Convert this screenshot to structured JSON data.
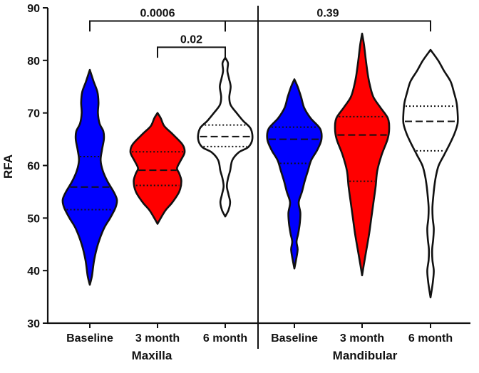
{
  "chart_data": {
    "type": "violin",
    "ylabel": "RFA",
    "ylim": [
      30,
      90
    ],
    "yticks": [
      30,
      40,
      50,
      60,
      70,
      80,
      90
    ],
    "grid": false,
    "groups": [
      {
        "name": "Maxilla",
        "categories": [
          "Baseline",
          "3 month",
          "6 month"
        ]
      },
      {
        "name": "Mandibular",
        "categories": [
          "Baseline",
          "3 month",
          "6 month"
        ]
      }
    ],
    "violins": [
      {
        "group": "Maxilla",
        "label": "Baseline",
        "color": "#0000ff",
        "min": 37.3,
        "max": 78.2,
        "q1": 51.6,
        "median": 55.9,
        "q3": 61.7,
        "profile": [
          [
            37.3,
            0
          ],
          [
            39,
            0.08
          ],
          [
            42,
            0.16
          ],
          [
            45,
            0.3
          ],
          [
            48,
            0.52
          ],
          [
            50,
            0.75
          ],
          [
            52,
            0.95
          ],
          [
            53.5,
            1.0
          ],
          [
            55,
            0.88
          ],
          [
            57,
            0.65
          ],
          [
            59,
            0.48
          ],
          [
            61,
            0.4
          ],
          [
            63,
            0.45
          ],
          [
            65,
            0.52
          ],
          [
            66.5,
            0.5
          ],
          [
            68,
            0.36
          ],
          [
            70,
            0.3
          ],
          [
            72,
            0.32
          ],
          [
            74,
            0.28
          ],
          [
            76,
            0.14
          ],
          [
            78.2,
            0
          ]
        ]
      },
      {
        "group": "Maxilla",
        "label": "3 month",
        "color": "#ff0000",
        "min": 48.9,
        "max": 70.0,
        "q1": 56.2,
        "median": 59.1,
        "q3": 62.6,
        "profile": [
          [
            48.9,
            0
          ],
          [
            50,
            0.12
          ],
          [
            51.5,
            0.3
          ],
          [
            53,
            0.55
          ],
          [
            55,
            0.8
          ],
          [
            57,
            0.88
          ],
          [
            58.5,
            0.8
          ],
          [
            59.5,
            0.72
          ],
          [
            61,
            0.86
          ],
          [
            62.5,
            1.0
          ],
          [
            64,
            0.92
          ],
          [
            66,
            0.55
          ],
          [
            67.5,
            0.25
          ],
          [
            69,
            0.12
          ],
          [
            70,
            0
          ]
        ]
      },
      {
        "group": "Maxilla",
        "label": "6 month",
        "color": "#ffffff",
        "min": 50.3,
        "max": 80.5,
        "q1": 63.6,
        "median": 65.5,
        "q3": 67.7,
        "profile": [
          [
            50.3,
            0
          ],
          [
            51.5,
            0.12
          ],
          [
            53,
            0.18
          ],
          [
            54.5,
            0.12
          ],
          [
            56,
            0.06
          ],
          [
            57.5,
            0.1
          ],
          [
            59,
            0.18
          ],
          [
            61,
            0.26
          ],
          [
            62.5,
            0.5
          ],
          [
            63.5,
            0.85
          ],
          [
            65,
            1.0
          ],
          [
            67,
            0.94
          ],
          [
            68.5,
            0.66
          ],
          [
            70,
            0.42
          ],
          [
            71.5,
            0.2
          ],
          [
            73,
            0.15
          ],
          [
            75,
            0.2
          ],
          [
            76.5,
            0.14
          ],
          [
            78,
            0.08
          ],
          [
            79.5,
            0.1
          ],
          [
            80.5,
            0
          ]
        ]
      },
      {
        "group": "Mandibular",
        "label": "Baseline",
        "color": "#0000ff",
        "min": 40.4,
        "max": 76.4,
        "q1": 60.4,
        "median": 65.0,
        "q3": 67.3,
        "profile": [
          [
            40.4,
            0
          ],
          [
            42,
            0.06
          ],
          [
            44,
            0.12
          ],
          [
            45.5,
            0.08
          ],
          [
            47,
            0.14
          ],
          [
            49,
            0.2
          ],
          [
            51,
            0.22
          ],
          [
            53,
            0.16
          ],
          [
            55,
            0.28
          ],
          [
            57,
            0.38
          ],
          [
            59,
            0.5
          ],
          [
            61,
            0.62
          ],
          [
            63,
            0.85
          ],
          [
            65,
            1.0
          ],
          [
            67,
            0.95
          ],
          [
            69,
            0.6
          ],
          [
            71,
            0.36
          ],
          [
            73,
            0.25
          ],
          [
            75,
            0.12
          ],
          [
            76.4,
            0
          ]
        ]
      },
      {
        "group": "Mandibular",
        "label": "3 month",
        "color": "#ff0000",
        "min": 39.1,
        "max": 85.1,
        "q1": 57.0,
        "median": 65.8,
        "q3": 69.3,
        "profile": [
          [
            39.1,
            0
          ],
          [
            41,
            0.06
          ],
          [
            44,
            0.16
          ],
          [
            47,
            0.26
          ],
          [
            50,
            0.34
          ],
          [
            53,
            0.42
          ],
          [
            56,
            0.5
          ],
          [
            59,
            0.56
          ],
          [
            62,
            0.72
          ],
          [
            65,
            0.94
          ],
          [
            67,
            1.0
          ],
          [
            69,
            0.95
          ],
          [
            71,
            0.68
          ],
          [
            73,
            0.42
          ],
          [
            75,
            0.3
          ],
          [
            77,
            0.22
          ],
          [
            80,
            0.14
          ],
          [
            83,
            0.07
          ],
          [
            85.1,
            0
          ]
        ]
      },
      {
        "group": "Mandibular",
        "label": "6 month",
        "color": "#ffffff",
        "min": 34.9,
        "max": 82.0,
        "q1": 62.8,
        "median": 68.4,
        "q3": 71.3,
        "profile": [
          [
            34.9,
            0
          ],
          [
            36.5,
            0.05
          ],
          [
            38,
            0.09
          ],
          [
            40,
            0.12
          ],
          [
            42,
            0.07
          ],
          [
            44,
            0.06
          ],
          [
            46,
            0.1
          ],
          [
            48,
            0.12
          ],
          [
            50,
            0.08
          ],
          [
            52,
            0.07
          ],
          [
            54,
            0.1
          ],
          [
            56,
            0.14
          ],
          [
            58,
            0.2
          ],
          [
            60,
            0.3
          ],
          [
            62,
            0.5
          ],
          [
            64,
            0.7
          ],
          [
            66,
            0.88
          ],
          [
            68,
            1.0
          ],
          [
            70,
            1.0
          ],
          [
            72,
            0.96
          ],
          [
            74,
            0.86
          ],
          [
            76,
            0.74
          ],
          [
            78,
            0.5
          ],
          [
            80,
            0.28
          ],
          [
            82,
            0
          ]
        ]
      }
    ],
    "comparisons": [
      {
        "label": "0.0006",
        "from": 0,
        "to": 2,
        "y": 87.5,
        "drop_left": 85.5,
        "drop_right": 85.5
      },
      {
        "label": "0.02",
        "from": 1,
        "to": 2,
        "y": 82.5,
        "drop_left": 80.5,
        "drop_right": 80.5
      },
      {
        "label": "0.39",
        "from": 2,
        "to": 5,
        "y": 87.5,
        "drop_left": 85.5,
        "drop_right": 85.5
      }
    ]
  }
}
